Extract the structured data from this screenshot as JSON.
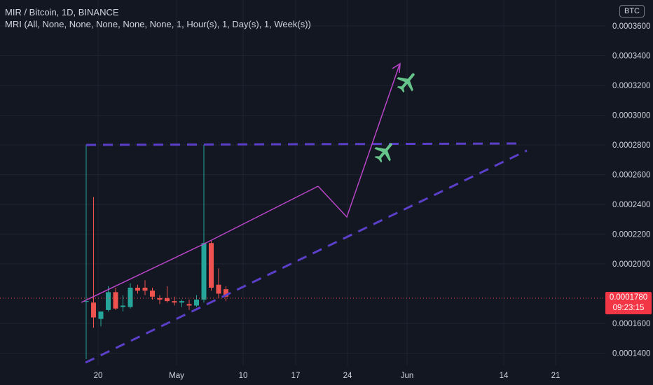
{
  "header": {
    "title": "MIR / Bitcoin, 1D, BINANCE",
    "indicator": "MRI (All, None, None, None, None, None, 1, Hour(s), 1, Day(s), 1, Week(s))"
  },
  "currency_badge": "BTC",
  "price_tag": {
    "price": "0.0001780",
    "countdown": "09:23:15"
  },
  "colors": {
    "background": "#131722",
    "up": "#26a69a",
    "down": "#ef5350",
    "trendline": "#b845c7",
    "dashed": "#5b3fc8",
    "plane": "#66c48a"
  },
  "price_axis": [
    "0.0003600",
    "0.0003400",
    "0.0003200",
    "0.0003000",
    "0.0002800",
    "0.0002600",
    "0.0002400",
    "0.0002200",
    "0.0002000",
    "0.0001600",
    "0.0001400"
  ],
  "time_axis": [
    "20",
    "May",
    "10",
    "17",
    "24",
    "Jun",
    "14",
    "21"
  ],
  "chart_data": {
    "type": "candlestick",
    "candles": [
      {
        "o": 0.000175,
        "h": 0.00028,
        "l": 0.000136,
        "c": 0.000175
      },
      {
        "o": 0.000174,
        "h": 0.000245,
        "l": 0.000157,
        "c": 0.000164
      },
      {
        "o": 0.000163,
        "h": 0.000168,
        "l": 0.000158,
        "c": 0.000168
      },
      {
        "o": 0.000169,
        "h": 0.000185,
        "l": 0.000168,
        "c": 0.000181
      },
      {
        "o": 0.000181,
        "h": 0.000184,
        "l": 0.000169,
        "c": 0.00017
      },
      {
        "o": 0.000171,
        "h": 0.000179,
        "l": 0.000168,
        "c": 0.000172
      },
      {
        "o": 0.000171,
        "h": 0.000187,
        "l": 0.00017,
        "c": 0.000184
      },
      {
        "o": 0.000184,
        "h": 0.000186,
        "l": 0.00018,
        "c": 0.000182
      },
      {
        "o": 0.000184,
        "h": 0.000189,
        "l": 0.000179,
        "c": 0.000182
      },
      {
        "o": 0.000182,
        "h": 0.000184,
        "l": 0.000176,
        "c": 0.000178
      },
      {
        "o": 0.000177,
        "h": 0.000179,
        "l": 0.000173,
        "c": 0.000176
      },
      {
        "o": 0.000177,
        "h": 0.000185,
        "l": 0.000174,
        "c": 0.000175
      },
      {
        "o": 0.000175,
        "h": 0.000178,
        "l": 0.000172,
        "c": 0.000174
      },
      {
        "o": 0.000174,
        "h": 0.000176,
        "l": 0.000171,
        "c": 0.000175
      },
      {
        "o": 0.000173,
        "h": 0.000176,
        "l": 0.000169,
        "c": 0.000172
      },
      {
        "o": 0.000172,
        "h": 0.000179,
        "l": 0.000171,
        "c": 0.000176
      },
      {
        "o": 0.000176,
        "h": 0.00028,
        "l": 0.000174,
        "c": 0.000214
      },
      {
        "o": 0.000214,
        "h": 0.000216,
        "l": 0.000182,
        "c": 0.000184
      },
      {
        "o": 0.000186,
        "h": 0.000197,
        "l": 0.000177,
        "c": 0.00018
      },
      {
        "o": 0.000183,
        "h": 0.000185,
        "l": 0.000175,
        "c": 0.000178
      }
    ]
  }
}
